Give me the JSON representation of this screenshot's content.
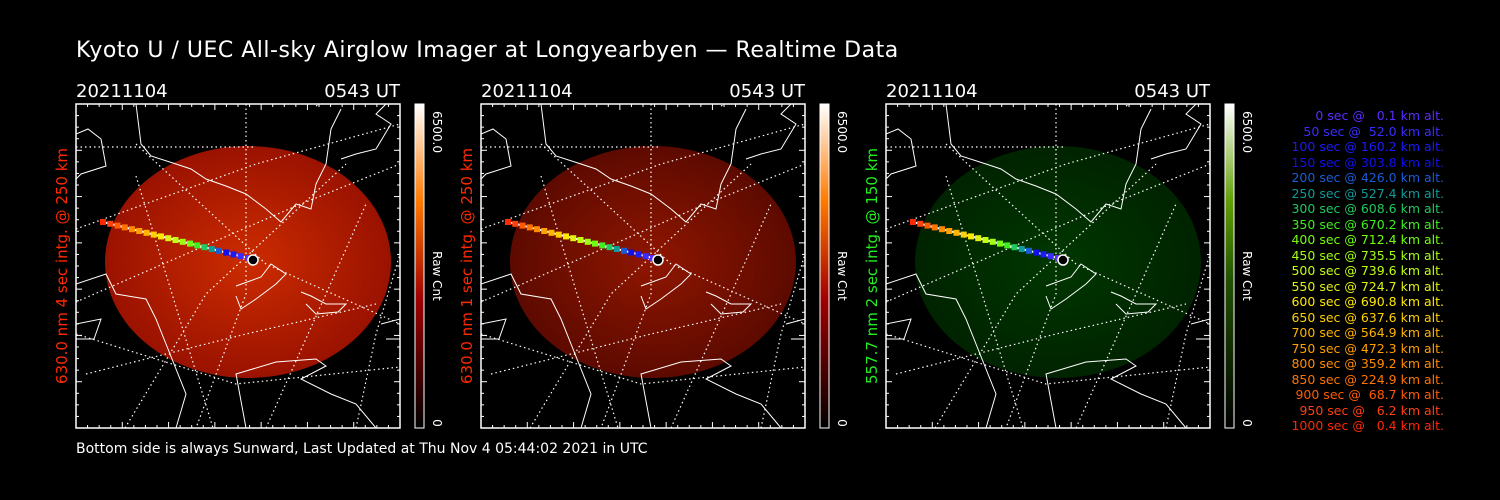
{
  "title": "Kyoto U / UEC All-sky Airglow Imager at Longyearbyen — Realtime Data",
  "footer": "Bottom side is always Sunward, Last Updated at Thu Nov  4 05:44:02 2021 in UTC",
  "panels": [
    {
      "date": "20211104",
      "time": "0543 UT",
      "label": "630.0 nm 4 sec intg. @ 250 km",
      "label_color": "#ff2a00",
      "cb_max": "6500.0",
      "cb_min": "0",
      "cb_unit": "Raw Cnt",
      "colormap": "red",
      "brightness": 0.85
    },
    {
      "date": "20211104",
      "time": "0543 UT",
      "label": "630.0 nm 1 sec intg. @ 250 km",
      "label_color": "#ff2a00",
      "cb_max": "6500.0",
      "cb_min": "0",
      "cb_unit": "Raw Cnt",
      "colormap": "red",
      "brightness": 0.3
    },
    {
      "date": "20211104",
      "time": "0543 UT",
      "label": "557.7 nm 2 sec intg. @ 150 km",
      "label_color": "#22ee22",
      "cb_max": "6500.0",
      "cb_min": "0",
      "cb_unit": "Raw Cnt",
      "colormap": "green",
      "brightness": 0.25
    }
  ],
  "trajectory_legend": [
    {
      "text": "0 sec @   0.1 km alt.",
      "color": "#5a2cff"
    },
    {
      "text": "50 sec @  52.0 km alt.",
      "color": "#3a2cff"
    },
    {
      "text": "100 sec @ 160.2 km alt.",
      "color": "#1a1aff"
    },
    {
      "text": "150 sec @ 303.8 km alt.",
      "color": "#1010ee"
    },
    {
      "text": "200 sec @ 426.0 km alt.",
      "color": "#1a5cd8"
    },
    {
      "text": "250 sec @ 527.4 km alt.",
      "color": "#109a9a"
    },
    {
      "text": "300 sec @ 608.6 km alt.",
      "color": "#20c860"
    },
    {
      "text": "350 sec @ 670.2 km alt.",
      "color": "#40ee20"
    },
    {
      "text": "400 sec @ 712.4 km alt.",
      "color": "#70ff10"
    },
    {
      "text": "450 sec @ 735.5 km alt.",
      "color": "#a0ff10"
    },
    {
      "text": "500 sec @ 739.6 km alt.",
      "color": "#c0ff10"
    },
    {
      "text": "550 sec @ 724.7 km alt.",
      "color": "#e0f010"
    },
    {
      "text": "600 sec @ 690.8 km alt.",
      "color": "#ffe800"
    },
    {
      "text": "650 sec @ 637.6 km alt.",
      "color": "#ffd000"
    },
    {
      "text": "700 sec @ 564.9 km alt.",
      "color": "#ffb400"
    },
    {
      "text": "750 sec @ 472.3 km alt.",
      "color": "#ffa000"
    },
    {
      "text": "800 sec @ 359.2 km alt.",
      "color": "#ff8c00"
    },
    {
      "text": "850 sec @ 224.9 km alt.",
      "color": "#ff7400"
    },
    {
      "text": "900 sec @  68.7 km alt.",
      "color": "#ff5a00"
    },
    {
      "text": "950 sec @   6.2 km alt.",
      "color": "#ff4010"
    },
    {
      "text": "1000 sec @   0.4 km alt.",
      "color": "#ff2800"
    }
  ]
}
